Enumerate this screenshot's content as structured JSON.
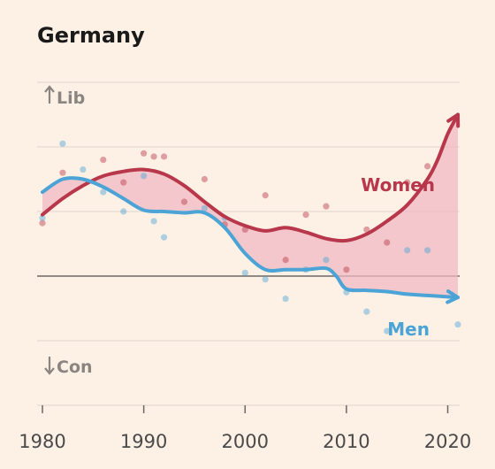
{
  "chart_data": {
    "type": "line",
    "title": "Germany",
    "y_top_label": "Lib",
    "y_bottom_label": "Con",
    "x_ticks": [
      1980,
      1990,
      2000,
      2010,
      2020
    ],
    "xlim": [
      1980,
      2021
    ],
    "ylim": [
      -2.0,
      3.0
    ],
    "grid": true,
    "area_between_series": true,
    "series": [
      {
        "name": "Women",
        "color": "#b8374a",
        "trend": [
          [
            1980,
            0.95
          ],
          [
            1982,
            1.2
          ],
          [
            1984,
            1.4
          ],
          [
            1986,
            1.55
          ],
          [
            1988,
            1.62
          ],
          [
            1990,
            1.65
          ],
          [
            1992,
            1.58
          ],
          [
            1994,
            1.4
          ],
          [
            1996,
            1.15
          ],
          [
            1998,
            0.92
          ],
          [
            2000,
            0.78
          ],
          [
            2002,
            0.7
          ],
          [
            2004,
            0.75
          ],
          [
            2006,
            0.68
          ],
          [
            2008,
            0.58
          ],
          [
            2010,
            0.55
          ],
          [
            2012,
            0.65
          ],
          [
            2014,
            0.85
          ],
          [
            2016,
            1.1
          ],
          [
            2018,
            1.5
          ],
          [
            2019,
            1.8
          ],
          [
            2020,
            2.2
          ],
          [
            2021,
            2.5
          ]
        ],
        "points": [
          [
            1980,
            0.82
          ],
          [
            1982,
            1.6
          ],
          [
            1986,
            1.8
          ],
          [
            1988,
            1.45
          ],
          [
            1990,
            1.9
          ],
          [
            1991,
            1.85
          ],
          [
            1992,
            1.85
          ],
          [
            1994,
            1.15
          ],
          [
            1996,
            1.5
          ],
          [
            1998,
            0.8
          ],
          [
            2000,
            0.72
          ],
          [
            2002,
            1.25
          ],
          [
            2004,
            0.25
          ],
          [
            2006,
            0.95
          ],
          [
            2008,
            1.08
          ],
          [
            2010,
            0.1
          ],
          [
            2012,
            0.72
          ],
          [
            2014,
            0.52
          ],
          [
            2016,
            1.45
          ],
          [
            2018,
            1.7
          ]
        ]
      },
      {
        "name": "Men",
        "color": "#4ba3d6",
        "trend": [
          [
            1980,
            1.3
          ],
          [
            1982,
            1.5
          ],
          [
            1984,
            1.5
          ],
          [
            1986,
            1.38
          ],
          [
            1988,
            1.2
          ],
          [
            1990,
            1.02
          ],
          [
            1992,
            1.0
          ],
          [
            1994,
            0.98
          ],
          [
            1996,
            0.98
          ],
          [
            1998,
            0.75
          ],
          [
            2000,
            0.35
          ],
          [
            2002,
            0.1
          ],
          [
            2004,
            0.1
          ],
          [
            2006,
            0.1
          ],
          [
            2008,
            0.12
          ],
          [
            2009,
            0.0
          ],
          [
            2010,
            -0.2
          ],
          [
            2012,
            -0.22
          ],
          [
            2014,
            -0.24
          ],
          [
            2016,
            -0.28
          ],
          [
            2018,
            -0.3
          ],
          [
            2020,
            -0.32
          ],
          [
            2021,
            -0.33
          ]
        ],
        "points": [
          [
            1980,
            0.9
          ],
          [
            1982,
            2.05
          ],
          [
            1984,
            1.65
          ],
          [
            1986,
            1.3
          ],
          [
            1988,
            1.0
          ],
          [
            1990,
            1.55
          ],
          [
            1991,
            0.85
          ],
          [
            1992,
            0.6
          ],
          [
            1996,
            1.05
          ],
          [
            1998,
            0.9
          ],
          [
            2000,
            0.05
          ],
          [
            2002,
            -0.05
          ],
          [
            2004,
            -0.35
          ],
          [
            2006,
            0.1
          ],
          [
            2008,
            0.25
          ],
          [
            2010,
            -0.25
          ],
          [
            2012,
            -0.55
          ],
          [
            2014,
            -0.85
          ],
          [
            2016,
            0.4
          ],
          [
            2018,
            0.4
          ],
          [
            2021,
            -0.75
          ]
        ]
      }
    ]
  }
}
